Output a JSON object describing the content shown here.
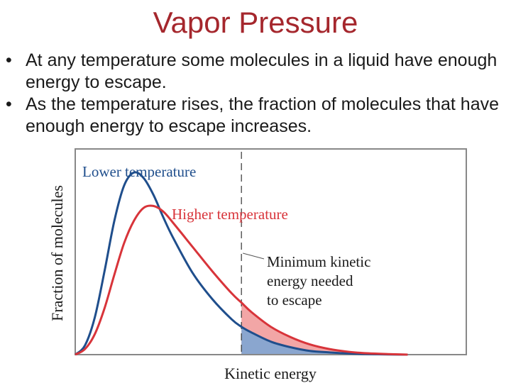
{
  "slide": {
    "title": "Vapor Pressure",
    "bullets": [
      "At any temperature some molecules in a liquid have enough energy to escape.",
      "As the temperature rises, the fraction of molecules that have enough energy to escape increases."
    ],
    "bullet_glyph": "•"
  },
  "chart_data": {
    "type": "line",
    "title": "",
    "xlabel": "Kinetic energy",
    "ylabel": "Fraction of molecules",
    "grid": false,
    "x_ticks": false,
    "y_ticks": false,
    "xlim": [
      0,
      10
    ],
    "ylim": [
      0,
      1
    ],
    "threshold": {
      "x": 4.25,
      "label": "Minimum kinetic energy needed to escape",
      "label_lines": [
        "Minimum kinetic",
        "energy needed",
        "to escape"
      ],
      "style": "dashed"
    },
    "series": [
      {
        "name": "Lower temperature",
        "color": "#1f4e8c",
        "fill_beyond_threshold": "#8aa6cf",
        "x": [
          0,
          0.25,
          0.5,
          0.75,
          1.0,
          1.25,
          1.5,
          1.75,
          2.0,
          2.25,
          2.5,
          3.0,
          3.5,
          4.0,
          4.25,
          4.5,
          5.0,
          5.5,
          6.0,
          6.5,
          7.0,
          7.5,
          8.0,
          8.5
        ],
        "y": [
          0,
          0.05,
          0.2,
          0.45,
          0.72,
          0.91,
          0.98,
          0.95,
          0.86,
          0.74,
          0.63,
          0.44,
          0.3,
          0.19,
          0.15,
          0.12,
          0.07,
          0.04,
          0.02,
          0.012,
          0.006,
          0.003,
          0.001,
          0.0
        ]
      },
      {
        "name": "Higher temperature",
        "color": "#d8343a",
        "fill_beyond_threshold": "#f2a6a6",
        "x": [
          0,
          0.25,
          0.5,
          0.75,
          1.0,
          1.25,
          1.5,
          1.75,
          2.0,
          2.25,
          2.5,
          3.0,
          3.5,
          4.0,
          4.25,
          4.5,
          5.0,
          5.5,
          6.0,
          6.5,
          7.0,
          7.5,
          8.0,
          8.5
        ],
        "y": [
          0,
          0.03,
          0.11,
          0.25,
          0.43,
          0.6,
          0.72,
          0.79,
          0.8,
          0.77,
          0.71,
          0.58,
          0.45,
          0.33,
          0.28,
          0.23,
          0.15,
          0.095,
          0.055,
          0.03,
          0.015,
          0.007,
          0.003,
          0.0
        ]
      }
    ],
    "colors": {
      "axis": "#888888",
      "text": "#1a1a1a",
      "callout_line": "#555555",
      "dash": "#333333"
    }
  }
}
